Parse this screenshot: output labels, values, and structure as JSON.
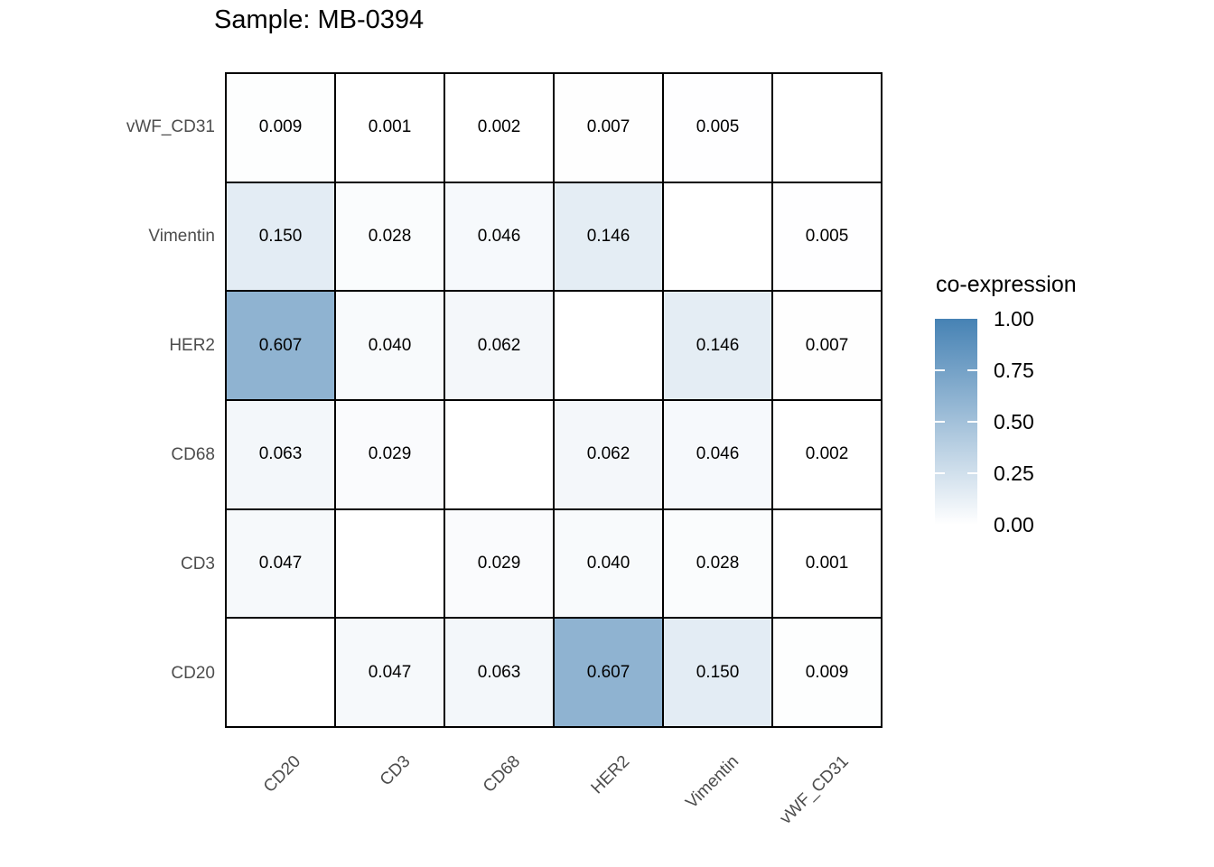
{
  "figure": {
    "background": "#ffffff",
    "title": "Sample: MB-0394"
  },
  "chart_data": {
    "type": "heatmap",
    "title": "Sample: MB-0394",
    "x_categories": [
      "CD20",
      "CD3",
      "CD68",
      "HER2",
      "Vimentin",
      "vWF_CD31"
    ],
    "y_categories_top_to_bottom": [
      "vWF_CD31",
      "Vimentin",
      "HER2",
      "CD68",
      "CD3",
      "CD20"
    ],
    "rows": [
      {
        "label": "vWF_CD31",
        "values": [
          "0.009",
          "0.001",
          "0.002",
          "0.007",
          "0.005",
          null
        ]
      },
      {
        "label": "Vimentin",
        "values": [
          "0.150",
          "0.028",
          "0.046",
          "0.146",
          null,
          "0.005"
        ]
      },
      {
        "label": "HER2",
        "values": [
          "0.607",
          "0.040",
          "0.062",
          null,
          "0.146",
          "0.007"
        ]
      },
      {
        "label": "CD68",
        "values": [
          "0.063",
          "0.029",
          null,
          "0.062",
          "0.046",
          "0.002"
        ]
      },
      {
        "label": "CD3",
        "values": [
          "0.047",
          null,
          "0.029",
          "0.040",
          "0.028",
          "0.001"
        ]
      },
      {
        "label": "CD20",
        "values": [
          null,
          "0.047",
          "0.063",
          "0.607",
          "0.150",
          "0.009"
        ]
      }
    ],
    "value_domain": [
      0,
      1
    ],
    "colorscale": {
      "low": "#FFFFFF",
      "high": "#4682B4"
    },
    "na_cell_color": "#FFFFFF",
    "cell_border_color": "#000000",
    "axis_text_color": "#4D4D4D",
    "grid": "cell-borders",
    "legend": {
      "position": "right",
      "title": "co-expression",
      "tick_labels": [
        "1.00",
        "0.75",
        "0.50",
        "0.25",
        "0.00"
      ],
      "tick_values": [
        1.0,
        0.75,
        0.5,
        0.25,
        0.0
      ]
    }
  }
}
